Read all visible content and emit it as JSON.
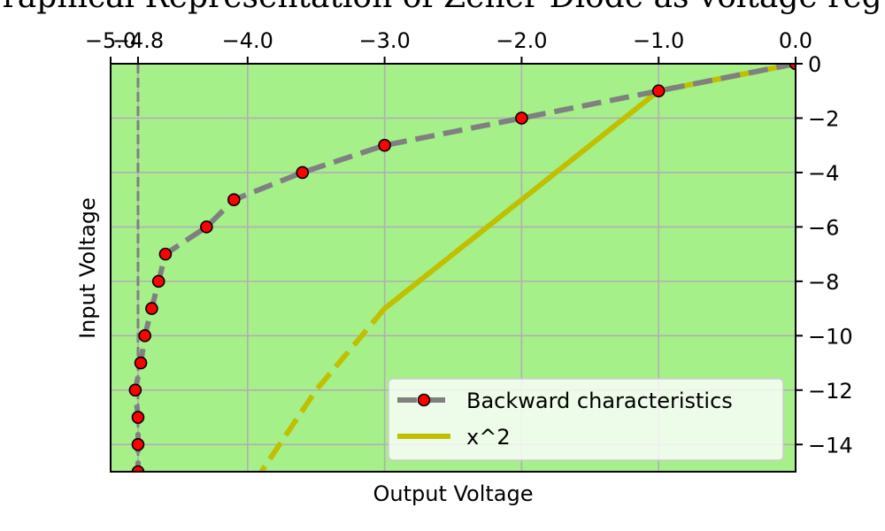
{
  "chart_data": {
    "type": "line",
    "title": "Graphical Representation of Zener Diode as voltage regulator",
    "xlabel": "Output Voltage",
    "ylabel": "Input Voltage",
    "xlim": [
      -5.0,
      0.0
    ],
    "ylim": [
      -15,
      0
    ],
    "x_axis_position": "top",
    "y_axis_position": "right",
    "x_ticks": [
      -5.0,
      -4.8,
      -4.0,
      -3.0,
      -2.0,
      -1.0,
      0.0
    ],
    "x_tick_labels": [
      "−5.0",
      "−4.8",
      "−4.0",
      "−3.0",
      "−2.0",
      "−1.0",
      "0.0"
    ],
    "y_ticks": [
      0,
      -2,
      -4,
      -6,
      -8,
      -10,
      -12,
      -14
    ],
    "y_tick_labels": [
      "0",
      "−2",
      "−4",
      "−6",
      "−8",
      "−10",
      "−12",
      "−14"
    ],
    "grid": true,
    "legend_placement": "lower-right",
    "plot_background": "#a6f08a",
    "zener_reference_x": -4.8,
    "series": [
      {
        "name": "Backward characteristics",
        "color": "#808080",
        "marker_color": "#ff0000",
        "line_style": "dashed",
        "marker": "circle",
        "x": [
          0.0,
          -1.0,
          -2.0,
          -3.0,
          -3.6,
          -4.1,
          -4.3,
          -4.6,
          -4.65,
          -4.7,
          -4.75,
          -4.78,
          -4.82,
          -4.8,
          -4.8,
          -4.8
        ],
        "y": [
          0,
          -1,
          -2,
          -3,
          -4,
          -5,
          -6,
          -7,
          -8,
          -9,
          -10,
          -11,
          -12,
          -13,
          -14,
          -15
        ]
      },
      {
        "name": "x^2",
        "color": "#c0c000",
        "solid": {
          "x": [
            0.0,
            -1.0,
            -2.0,
            -3.0
          ],
          "y": [
            0,
            -1,
            -5,
            -9
          ]
        },
        "dashed": {
          "x": [
            -3.0,
            -3.5,
            -3.9
          ],
          "y": [
            -9,
            -12,
            -15
          ]
        }
      }
    ]
  }
}
